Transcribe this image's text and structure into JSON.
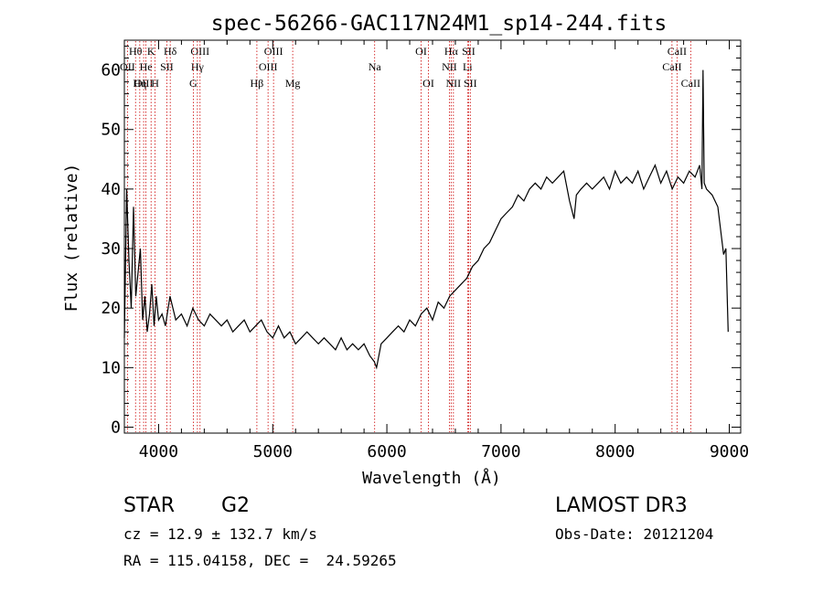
{
  "chart_data": {
    "type": "line",
    "title": "spec-56266-GAC117N24M1_sp14-244.fits",
    "xlabel": "Wavelength (Å)",
    "ylabel": "Flux (relative)",
    "xlim": [
      3700,
      9100
    ],
    "ylim": [
      -1,
      65
    ],
    "xticks": [
      4000,
      5000,
      6000,
      7000,
      8000,
      9000
    ],
    "yticks": [
      0,
      10,
      20,
      30,
      40,
      50,
      60
    ],
    "grid": false,
    "series": [
      {
        "color": "#000000",
        "x": [
          3700,
          3720,
          3740,
          3760,
          3780,
          3800,
          3820,
          3840,
          3860,
          3880,
          3900,
          3920,
          3940,
          3960,
          3980,
          4000,
          4030,
          4060,
          4100,
          4150,
          4200,
          4250,
          4300,
          4350,
          4400,
          4450,
          4500,
          4550,
          4600,
          4650,
          4700,
          4750,
          4800,
          4850,
          4900,
          4950,
          5000,
          5050,
          5100,
          5150,
          5200,
          5250,
          5300,
          5350,
          5400,
          5450,
          5500,
          5550,
          5600,
          5650,
          5700,
          5750,
          5800,
          5850,
          5890,
          5910,
          5950,
          6000,
          6050,
          6100,
          6150,
          6200,
          6250,
          6300,
          6350,
          6400,
          6450,
          6500,
          6550,
          6600,
          6650,
          6700,
          6750,
          6800,
          6850,
          6900,
          6950,
          7000,
          7050,
          7100,
          7150,
          7200,
          7250,
          7300,
          7350,
          7400,
          7450,
          7500,
          7550,
          7600,
          7640,
          7660,
          7700,
          7750,
          7800,
          7850,
          7900,
          7950,
          8000,
          8050,
          8100,
          8150,
          8200,
          8250,
          8300,
          8350,
          8400,
          8450,
          8500,
          8550,
          8600,
          8650,
          8700,
          8740,
          8760,
          8770,
          8780,
          8800,
          8850,
          8900,
          8950,
          8970,
          8990
        ],
        "y": [
          15,
          40,
          28,
          20,
          37,
          22,
          26,
          30,
          18,
          22,
          16,
          19,
          24,
          17,
          22,
          18,
          19,
          17,
          22,
          18,
          19,
          17,
          20,
          18,
          17,
          19,
          18,
          17,
          18,
          16,
          17,
          18,
          16,
          17,
          18,
          16,
          15,
          17,
          15,
          16,
          14,
          15,
          16,
          15,
          14,
          15,
          14,
          13,
          15,
          13,
          14,
          13,
          14,
          12,
          11,
          10,
          14,
          15,
          16,
          17,
          16,
          18,
          17,
          19,
          20,
          18,
          21,
          20,
          22,
          23,
          24,
          25,
          27,
          28,
          30,
          31,
          33,
          35,
          36,
          37,
          39,
          38,
          40,
          41,
          40,
          42,
          41,
          42,
          43,
          38,
          35,
          39,
          40,
          41,
          40,
          41,
          42,
          40,
          43,
          41,
          42,
          41,
          43,
          40,
          42,
          44,
          41,
          43,
          40,
          42,
          41,
          43,
          42,
          44,
          40,
          60,
          41,
          40,
          39,
          37,
          29,
          30,
          16
        ]
      }
    ],
    "spectral_lines": [
      {
        "label": "Hθ",
        "x": 3798,
        "row": 1
      },
      {
        "label": "OII",
        "x": 3727,
        "row": 2
      },
      {
        "label": "OIII",
        "x": 3869,
        "row": 3
      },
      {
        "label": "He",
        "x": 3889,
        "row": 2
      },
      {
        "label": "Hη",
        "x": 3835,
        "row": 3
      },
      {
        "label": "K",
        "x": 3934,
        "row": 1
      },
      {
        "label": "H",
        "x": 3969,
        "row": 3
      },
      {
        "label": "SII",
        "x": 4072,
        "row": 2
      },
      {
        "label": "Hδ",
        "x": 4102,
        "row": 1
      },
      {
        "label": "OIII",
        "x": 4363,
        "row": 1
      },
      {
        "label": "Hγ",
        "x": 4340,
        "row": 2
      },
      {
        "label": "G",
        "x": 4304,
        "row": 3
      },
      {
        "label": "Hβ",
        "x": 4861,
        "row": 3
      },
      {
        "label": "OIII",
        "x": 5007,
        "row": 1
      },
      {
        "label": "OIII",
        "x": 4959,
        "row": 2
      },
      {
        "label": "Mg",
        "x": 5175,
        "row": 3
      },
      {
        "label": "Na",
        "x": 5893,
        "row": 2
      },
      {
        "label": "OI",
        "x": 6300,
        "row": 1
      },
      {
        "label": "OI",
        "x": 6364,
        "row": 3
      },
      {
        "label": "Hα",
        "x": 6563,
        "row": 1
      },
      {
        "label": "SII",
        "x": 6716,
        "row": 1
      },
      {
        "label": "NII",
        "x": 6548,
        "row": 2
      },
      {
        "label": "Li",
        "x": 6707,
        "row": 2
      },
      {
        "label": "NII",
        "x": 6583,
        "row": 3
      },
      {
        "label": "SII",
        "x": 6731,
        "row": 3
      },
      {
        "label": "CaII",
        "x": 8542,
        "row": 1
      },
      {
        "label": "CaII",
        "x": 8498,
        "row": 2
      },
      {
        "label": "CaII",
        "x": 8662,
        "row": 3
      }
    ]
  },
  "info": {
    "object_class": "STAR",
    "subclass": "G2",
    "survey": "LAMOST DR3",
    "redshift": "cz = 12.9 ± 132.7 km/s",
    "obs_date": "Obs-Date: 20121204",
    "coords": "RA = 115.04158, DEC =  24.59265"
  },
  "colors": {
    "spectrum": "#000000",
    "line_markers": "#cc0000"
  }
}
